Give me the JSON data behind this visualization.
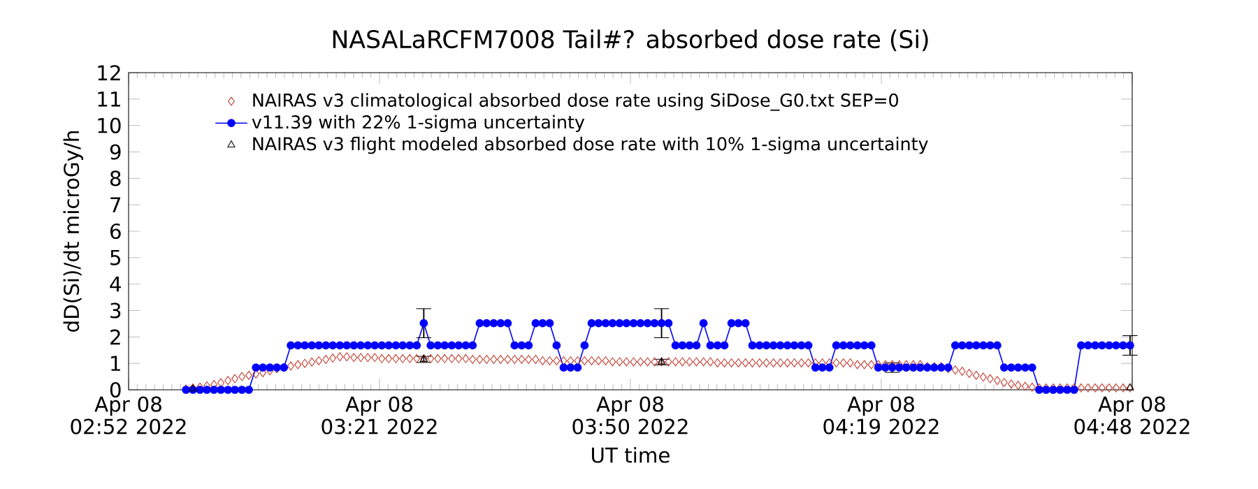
{
  "chart_data": {
    "type": "line",
    "title": "NASALaRCFM7008 Tail#? absorbed dose rate (Si)",
    "xlabel": "UT time",
    "ylabel": "dD(Si)/dt microGy/h",
    "x": [
      "2022-04-08T02:58:38",
      "2022-04-08T02:59:26",
      "2022-04-08T03:00:15",
      "2022-04-08T03:01:03",
      "2022-04-08T03:01:52",
      "2022-04-08T03:02:40",
      "2022-04-08T03:03:29",
      "2022-04-08T03:04:17",
      "2022-04-08T03:05:06",
      "2022-04-08T03:05:54",
      "2022-04-08T03:06:43",
      "2022-04-08T03:07:31",
      "2022-04-08T03:08:20",
      "2022-04-08T03:09:08",
      "2022-04-08T03:09:57",
      "2022-04-08T03:10:45",
      "2022-04-08T03:11:34",
      "2022-04-08T03:12:22",
      "2022-04-08T03:13:11",
      "2022-04-08T03:13:59",
      "2022-04-08T03:14:48",
      "2022-04-08T03:15:36",
      "2022-04-08T03:16:25",
      "2022-04-08T03:17:13",
      "2022-04-08T03:18:02",
      "2022-04-08T03:18:50",
      "2022-04-08T03:19:39",
      "2022-04-08T03:20:27",
      "2022-04-08T03:21:16",
      "2022-04-08T03:22:04",
      "2022-04-08T03:22:53",
      "2022-04-08T03:23:41",
      "2022-04-08T03:24:30",
      "2022-04-08T03:25:18",
      "2022-04-08T03:26:07",
      "2022-04-08T03:26:55",
      "2022-04-08T03:27:44",
      "2022-04-08T03:28:32",
      "2022-04-08T03:29:21",
      "2022-04-08T03:30:09",
      "2022-04-08T03:30:58",
      "2022-04-08T03:31:46",
      "2022-04-08T03:32:35",
      "2022-04-08T03:33:23",
      "2022-04-08T03:34:12",
      "2022-04-08T03:35:00",
      "2022-04-08T03:35:49",
      "2022-04-08T03:36:37",
      "2022-04-08T03:37:26",
      "2022-04-08T03:38:14",
      "2022-04-08T03:39:03",
      "2022-04-08T03:39:51",
      "2022-04-08T03:40:40",
      "2022-04-08T03:41:28",
      "2022-04-08T03:42:17",
      "2022-04-08T03:43:05",
      "2022-04-08T03:43:54",
      "2022-04-08T03:44:42",
      "2022-04-08T03:45:31",
      "2022-04-08T03:46:19",
      "2022-04-08T03:47:08",
      "2022-04-08T03:47:56",
      "2022-04-08T03:48:45",
      "2022-04-08T03:49:33",
      "2022-04-08T03:50:22",
      "2022-04-08T03:51:10",
      "2022-04-08T03:51:59",
      "2022-04-08T03:52:47",
      "2022-04-08T03:53:36",
      "2022-04-08T03:54:24",
      "2022-04-08T03:55:13",
      "2022-04-08T03:56:01",
      "2022-04-08T03:56:50",
      "2022-04-08T03:57:38",
      "2022-04-08T03:58:27",
      "2022-04-08T03:59:15",
      "2022-04-08T04:00:04",
      "2022-04-08T04:00:52",
      "2022-04-08T04:01:41",
      "2022-04-08T04:02:29",
      "2022-04-08T04:03:18",
      "2022-04-08T04:04:06",
      "2022-04-08T04:04:55",
      "2022-04-08T04:05:43",
      "2022-04-08T04:06:32",
      "2022-04-08T04:07:20",
      "2022-04-08T04:08:09",
      "2022-04-08T04:08:57",
      "2022-04-08T04:09:46",
      "2022-04-08T04:10:34",
      "2022-04-08T04:11:23",
      "2022-04-08T04:12:11",
      "2022-04-08T04:13:00",
      "2022-04-08T04:13:48",
      "2022-04-08T04:14:37",
      "2022-04-08T04:15:25",
      "2022-04-08T04:16:14",
      "2022-04-08T04:17:02",
      "2022-04-08T04:17:51",
      "2022-04-08T04:18:39",
      "2022-04-08T04:19:28",
      "2022-04-08T04:20:16",
      "2022-04-08T04:21:05",
      "2022-04-08T04:21:53",
      "2022-04-08T04:22:42",
      "2022-04-08T04:23:30",
      "2022-04-08T04:24:19",
      "2022-04-08T04:25:07",
      "2022-04-08T04:25:56",
      "2022-04-08T04:26:44",
      "2022-04-08T04:27:33",
      "2022-04-08T04:28:21",
      "2022-04-08T04:29:10",
      "2022-04-08T04:29:58",
      "2022-04-08T04:30:47",
      "2022-04-08T04:31:35",
      "2022-04-08T04:32:24",
      "2022-04-08T04:33:12",
      "2022-04-08T04:34:01",
      "2022-04-08T04:34:49",
      "2022-04-08T04:35:38",
      "2022-04-08T04:36:26",
      "2022-04-08T04:37:15",
      "2022-04-08T04:38:03",
      "2022-04-08T04:38:52",
      "2022-04-08T04:39:40",
      "2022-04-08T04:40:29",
      "2022-04-08T04:41:17",
      "2022-04-08T04:42:06",
      "2022-04-08T04:42:54",
      "2022-04-08T04:43:43",
      "2022-04-08T04:44:31",
      "2022-04-08T04:45:20",
      "2022-04-08T04:46:08",
      "2022-04-08T04:46:57",
      "2022-04-08T04:47:45"
    ],
    "series": [
      {
        "name": "NAIRAS v3 climatological absorbed dose rate using SiDose_G0.txt SEP=0",
        "type": "scatter",
        "marker": "diamond",
        "color": "#c0392b",
        "values": [
          0.03,
          0.07,
          0.1,
          0.15,
          0.2,
          0.27,
          0.35,
          0.42,
          0.5,
          0.55,
          0.6,
          0.65,
          0.72,
          0.8,
          0.85,
          0.9,
          0.95,
          1.0,
          1.05,
          1.1,
          1.15,
          1.2,
          1.25,
          1.25,
          1.22,
          1.22,
          1.22,
          1.22,
          1.18,
          1.18,
          1.18,
          1.18,
          1.18,
          1.18,
          1.18,
          1.18,
          1.18,
          1.18,
          1.18,
          1.18,
          1.18,
          1.15,
          1.15,
          1.15,
          1.15,
          1.15,
          1.15,
          1.15,
          1.15,
          1.15,
          1.15,
          1.1,
          1.1,
          1.1,
          1.1,
          1.1,
          1.1,
          1.1,
          1.1,
          1.1,
          1.1,
          1.06,
          1.06,
          1.06,
          1.06,
          1.06,
          1.06,
          1.06,
          1.06,
          1.06,
          1.06,
          1.06,
          1.06,
          1.06,
          1.06,
          1.06,
          1.02,
          1.02,
          1.02,
          1.02,
          1.02,
          1.02,
          1.02,
          1.02,
          1.02,
          1.02,
          1.02,
          1.02,
          1.02,
          1.02,
          1.02,
          1.02,
          1.02,
          1.02,
          1.02,
          1.02,
          0.95,
          0.95,
          0.95,
          0.95,
          0.95,
          0.95,
          0.95,
          0.95,
          0.95,
          0.95,
          0.88,
          0.88,
          0.88,
          0.8,
          0.75,
          0.7,
          0.62,
          0.55,
          0.48,
          0.42,
          0.35,
          0.28,
          0.22,
          0.17,
          0.13,
          0.1,
          0.07,
          0.07,
          0.07,
          0.07,
          0.07,
          0.07,
          0.07,
          0.07,
          0.07,
          0.07,
          0.07,
          0.07,
          0.07,
          0.07
        ]
      },
      {
        "name": "NAIRAS v3 flight modeled absorbed dose rate with 10% 1-sigma uncertainty",
        "type": "scatter",
        "marker": "triangle",
        "color": "#000000",
        "x": [
          "2022-04-08T02:59:26",
          "2022-04-08T03:26:07",
          "2022-04-08T03:53:36",
          "2022-04-08T04:20:16",
          "2022-04-08T04:47:45"
        ],
        "values": [
          0.03,
          1.15,
          1.05,
          null,
          0.07
        ],
        "errors": [
          null,
          0.115,
          0.105,
          null,
          null
        ]
      },
      {
        "name": "v11.39 with 22% 1-sigma uncertainty",
        "marker": "circle",
        "line_style": "solid",
        "color": "#0000ff",
        "values": [
          0,
          0,
          0,
          0,
          0,
          0,
          0,
          0,
          0,
          0,
          0.84,
          0.84,
          0.84,
          0.84,
          0.84,
          1.68,
          1.68,
          1.68,
          1.68,
          1.68,
          1.68,
          1.68,
          1.68,
          1.68,
          1.68,
          1.68,
          1.68,
          1.68,
          1.68,
          1.68,
          1.68,
          1.68,
          1.68,
          1.68,
          2.52,
          1.68,
          1.68,
          1.68,
          1.68,
          1.68,
          1.68,
          1.68,
          2.52,
          2.52,
          2.52,
          2.52,
          2.52,
          1.68,
          1.68,
          1.68,
          2.52,
          2.52,
          2.52,
          1.68,
          0.84,
          0.84,
          0.84,
          1.68,
          2.52,
          2.52,
          2.52,
          2.52,
          2.52,
          2.52,
          2.52,
          2.52,
          2.52,
          2.52,
          2.52,
          2.52,
          1.68,
          1.68,
          1.68,
          1.68,
          2.52,
          1.68,
          1.68,
          1.68,
          2.52,
          2.52,
          2.52,
          1.68,
          1.68,
          1.68,
          1.68,
          1.68,
          1.68,
          1.68,
          1.68,
          1.68,
          0.84,
          0.84,
          0.84,
          1.68,
          1.68,
          1.68,
          1.68,
          1.68,
          1.68,
          0.84,
          0.84,
          0.84,
          0.84,
          0.84,
          0.84,
          0.84,
          0.84,
          0.84,
          0.84,
          0.84,
          1.68,
          1.68,
          1.68,
          1.68,
          1.68,
          1.68,
          1.68,
          0.84,
          0.84,
          0.84,
          0.84,
          0.84,
          0,
          0,
          0,
          0,
          0,
          0,
          1.68,
          1.68,
          1.68,
          1.68,
          1.68,
          1.68,
          1.68,
          1.68
        ],
        "errors": [
          null,
          null,
          null,
          null,
          null,
          null,
          null,
          null,
          null,
          null,
          null,
          null,
          null,
          null,
          null,
          null,
          null,
          null,
          null,
          null,
          null,
          null,
          null,
          null,
          null,
          null,
          null,
          null,
          null,
          null,
          null,
          null,
          null,
          null,
          0.55,
          null,
          null,
          null,
          null,
          null,
          null,
          null,
          null,
          null,
          null,
          null,
          null,
          null,
          null,
          null,
          null,
          null,
          null,
          null,
          null,
          null,
          null,
          null,
          null,
          null,
          null,
          null,
          null,
          null,
          null,
          null,
          null,
          null,
          0.55,
          null,
          null,
          null,
          null,
          null,
          null,
          null,
          null,
          null,
          null,
          null,
          null,
          null,
          null,
          null,
          null,
          null,
          null,
          null,
          null,
          null,
          null,
          null,
          null,
          null,
          null,
          null,
          null,
          null,
          null,
          null,
          null,
          0.18,
          null,
          null,
          null,
          null,
          null,
          null,
          null,
          null,
          null,
          null,
          null,
          null,
          null,
          null,
          null,
          null,
          null,
          null,
          null,
          null,
          null,
          null,
          null,
          null,
          null,
          null,
          null,
          null,
          null,
          null,
          null,
          null,
          null,
          0.37
        ]
      }
    ],
    "xlim": [
      "2022-04-08T02:52",
      "2022-04-08T04:48"
    ],
    "ylim": [
      0,
      12
    ],
    "xticks": [
      {
        "value": "2022-04-08T02:52",
        "label": "Apr 08 02:52 2022"
      },
      {
        "value": "2022-04-08T03:21",
        "label": "Apr 08 03:21 2022"
      },
      {
        "value": "2022-04-08T03:50",
        "label": "Apr 08 03:50 2022"
      },
      {
        "value": "2022-04-08T04:19",
        "label": "Apr 08 04:19 2022"
      },
      {
        "value": "2022-04-08T04:48",
        "label": "Apr 08 04:48 2022"
      }
    ],
    "yticks": [
      0,
      1,
      2,
      3,
      4,
      5,
      6,
      7,
      8,
      9,
      10,
      11,
      12
    ],
    "legend": "top left",
    "grid": false
  }
}
